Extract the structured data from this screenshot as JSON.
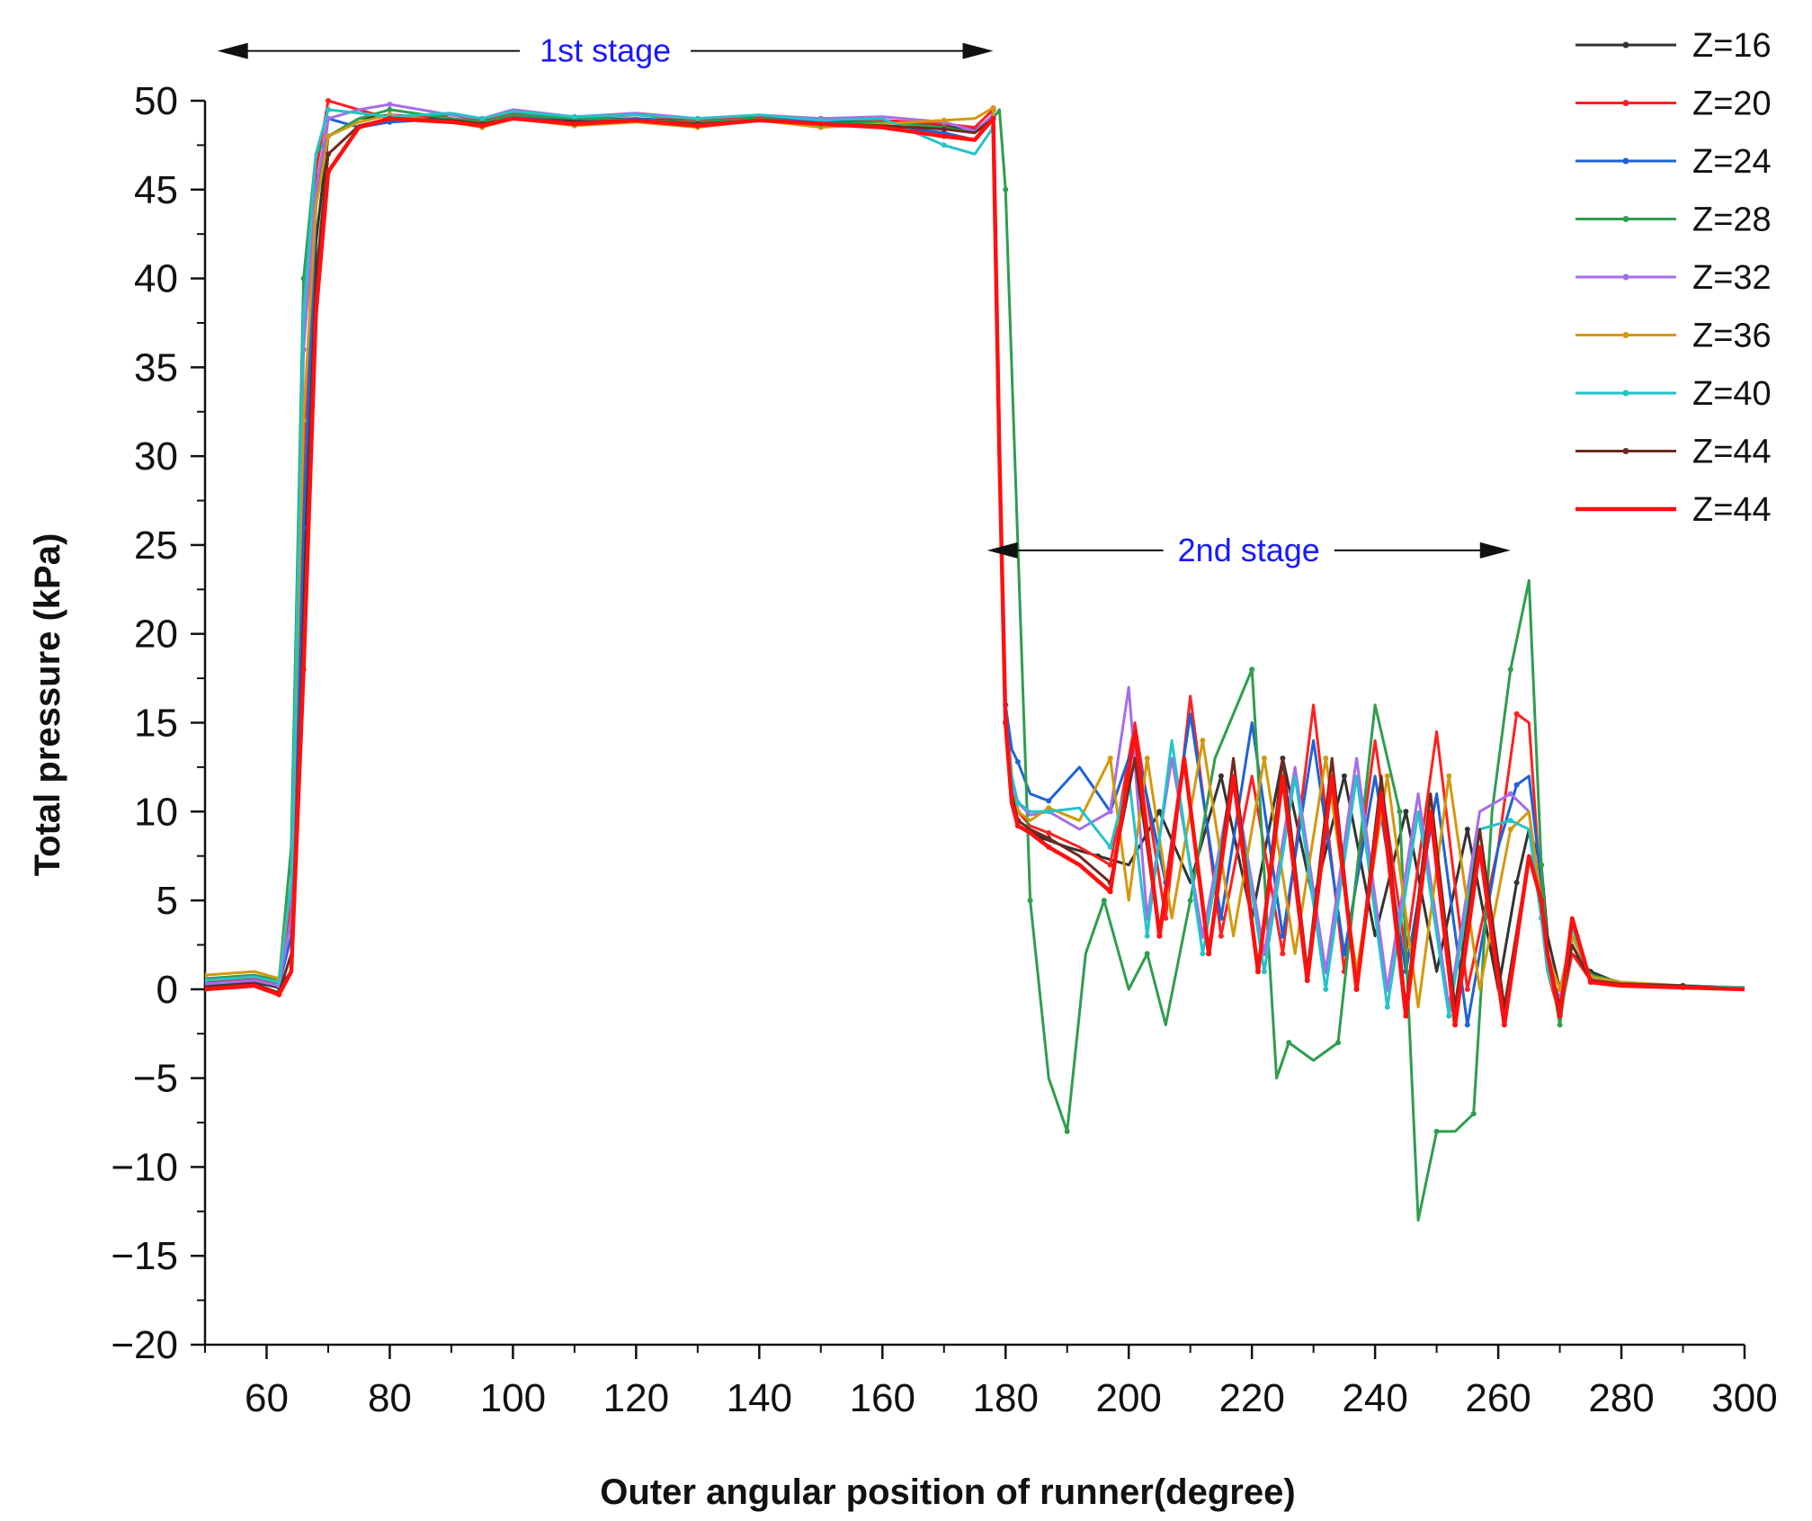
{
  "chart_data": {
    "type": "line",
    "title": "",
    "xlabel": "Outer angular position of runner(degree)",
    "ylabel": "Total pressure (kPa)",
    "xlim": [
      50,
      300
    ],
    "ylim": [
      -20,
      50
    ],
    "xticks": [
      60,
      80,
      100,
      120,
      140,
      160,
      180,
      200,
      220,
      240,
      260,
      280,
      300
    ],
    "yticks": [
      -20,
      -15,
      -10,
      -5,
      0,
      5,
      10,
      15,
      20,
      25,
      30,
      35,
      40,
      45,
      50
    ],
    "xtick_labels": [
      "60",
      "80",
      "100",
      "120",
      "140",
      "160",
      "180",
      "200",
      "220",
      "240",
      "260",
      "280",
      "300"
    ],
    "ytick_labels": [
      "−20",
      "−15",
      "−10",
      "−5",
      "0",
      "5",
      "10",
      "15",
      "20",
      "25",
      "30",
      "35",
      "40",
      "45",
      "50"
    ],
    "legend_position": "top-right",
    "annotations": [
      {
        "text": "1st stage",
        "x_from": 52,
        "x_to": 178,
        "y": 52.8,
        "color": "#1a1aff"
      },
      {
        "text": "2nd stage",
        "x_from": 177,
        "x_to": 262,
        "y": 24.7,
        "color": "#1a1aff"
      }
    ],
    "series": [
      {
        "name": "Z=16",
        "color": "#333333",
        "x": [
          50,
          58,
          62,
          64,
          66,
          68,
          70,
          75,
          80,
          90,
          95,
          100,
          110,
          120,
          130,
          140,
          150,
          160,
          170,
          175,
          178,
          179,
          180,
          181,
          182,
          184,
          186,
          190,
          195,
          200,
          205,
          210,
          215,
          220,
          225,
          230,
          235,
          240,
          245,
          250,
          255,
          260,
          263,
          265,
          267,
          268,
          270,
          272,
          275,
          280,
          290,
          300
        ],
        "y": [
          0.2,
          0.4,
          0.1,
          1,
          22,
          42,
          48,
          49,
          49.2,
          49,
          48.8,
          49,
          48.9,
          49,
          48.8,
          49,
          48.9,
          48.8,
          48.6,
          48.4,
          49,
          30,
          15,
          11,
          9.5,
          9,
          8.5,
          8,
          7.5,
          7,
          10,
          6,
          12,
          4,
          13,
          5,
          12,
          3,
          10,
          1,
          9,
          0,
          6,
          9,
          7,
          3,
          0,
          2,
          1,
          0.3,
          0.2,
          0
        ]
      },
      {
        "name": "Z=20",
        "color": "#ff2020",
        "x": [
          50,
          58,
          62,
          64,
          66,
          68,
          70,
          75,
          80,
          90,
          95,
          100,
          110,
          120,
          130,
          140,
          150,
          160,
          170,
          175,
          178,
          179,
          180,
          181,
          182,
          184,
          187,
          192,
          197,
          201,
          206,
          210,
          215,
          220,
          225,
          230,
          235,
          240,
          245,
          250,
          255,
          260,
          263,
          265,
          267,
          268,
          270,
          272,
          275,
          280,
          290,
          300
        ],
        "y": [
          0.4,
          0.6,
          0.3,
          5,
          30,
          46,
          50,
          49.5,
          49,
          49.2,
          48.9,
          49.3,
          49,
          49.2,
          48.9,
          49.1,
          49,
          48.9,
          48.7,
          48.5,
          49.5,
          30,
          16,
          12,
          10,
          9.2,
          8.8,
          8,
          7,
          15,
          4,
          16.5,
          3,
          12,
          2,
          16,
          1,
          14,
          2,
          14.5,
          0,
          8,
          15.5,
          15,
          5,
          1,
          -1.5,
          2,
          0.5,
          0.3,
          0.2,
          0
        ]
      },
      {
        "name": "Z=24",
        "color": "#1e63d6",
        "x": [
          50,
          58,
          62,
          64,
          66,
          68,
          70,
          75,
          80,
          90,
          95,
          100,
          110,
          120,
          130,
          140,
          150,
          160,
          170,
          175,
          178,
          179,
          180,
          181,
          182,
          184,
          187,
          192,
          197,
          201,
          206,
          210,
          215,
          220,
          225,
          230,
          235,
          240,
          245,
          250,
          255,
          260,
          263,
          265,
          267,
          268,
          270,
          272,
          275,
          280,
          290,
          300
        ],
        "y": [
          0.3,
          0.5,
          0.2,
          3,
          26,
          44,
          49,
          48.5,
          48.8,
          49,
          48.7,
          49.1,
          48.8,
          49,
          48.7,
          49,
          48.8,
          48.6,
          48.2,
          47.8,
          49,
          30,
          16,
          13.5,
          12.8,
          11,
          10.6,
          12.5,
          10,
          14,
          6,
          15.5,
          4,
          15,
          3,
          14,
          2,
          12,
          1,
          11,
          -2,
          8,
          11.5,
          12,
          6,
          2,
          0,
          3,
          0.8,
          0.3,
          0.2,
          0
        ]
      },
      {
        "name": "Z=28",
        "color": "#2e9e4e",
        "x": [
          50,
          58,
          62,
          64,
          66,
          68,
          70,
          75,
          80,
          90,
          95,
          100,
          110,
          120,
          130,
          140,
          150,
          160,
          170,
          175,
          178,
          179,
          180,
          182,
          184,
          187,
          190,
          193,
          196,
          200,
          203,
          206,
          210,
          214,
          220,
          224,
          226,
          230,
          234,
          240,
          244,
          247,
          250,
          253,
          256,
          259,
          262,
          265,
          267,
          268,
          270,
          272,
          275,
          280,
          290,
          300
        ],
        "y": [
          0.6,
          0.8,
          0.5,
          8,
          40,
          47,
          48,
          49,
          49.5,
          49,
          48.8,
          49.2,
          49,
          48.9,
          48.8,
          49,
          48.7,
          48.8,
          48.5,
          48.2,
          49,
          49.5,
          45,
          25,
          5,
          -5,
          -8,
          2,
          5,
          0,
          2,
          -2,
          5,
          13,
          18,
          -5,
          -3,
          -4,
          -3,
          16,
          10,
          -13,
          -8,
          -8,
          -7,
          10,
          18,
          23,
          7,
          2,
          -2,
          3,
          0.8,
          0.4,
          0.2,
          0.1
        ]
      },
      {
        "name": "Z=32",
        "color": "#a66de8",
        "x": [
          50,
          58,
          62,
          64,
          66,
          68,
          70,
          75,
          80,
          90,
          95,
          100,
          110,
          120,
          130,
          140,
          150,
          160,
          170,
          175,
          178,
          179,
          180,
          181,
          182,
          184,
          187,
          192,
          197,
          200,
          203,
          207,
          212,
          217,
          222,
          227,
          232,
          237,
          242,
          247,
          252,
          257,
          262,
          265,
          267,
          268,
          270,
          272,
          275,
          280,
          290,
          300
        ],
        "y": [
          0.3,
          0.5,
          0.2,
          4,
          36,
          45,
          49,
          49.5,
          49.8,
          49.2,
          49,
          49.5,
          49.1,
          49.3,
          49,
          49.2,
          49,
          49.1,
          48.8,
          48.3,
          49.2,
          30,
          15,
          11.5,
          10.5,
          9.8,
          10,
          9,
          10,
          17,
          4,
          13,
          3,
          12,
          2,
          12.5,
          1,
          13,
          0,
          11,
          -1,
          10,
          11,
          10,
          4,
          1,
          -0.5,
          2.5,
          0.6,
          0.3,
          0.2,
          0.1
        ]
      },
      {
        "name": "Z=36",
        "color": "#d4980e",
        "x": [
          50,
          58,
          62,
          64,
          66,
          68,
          70,
          75,
          80,
          90,
          95,
          100,
          110,
          120,
          130,
          140,
          150,
          160,
          170,
          175,
          178,
          179,
          180,
          181,
          182,
          184,
          187,
          192,
          197,
          200,
          203,
          207,
          212,
          217,
          222,
          227,
          232,
          237,
          242,
          247,
          252,
          257,
          262,
          265,
          267,
          268,
          270,
          272,
          275,
          280,
          290,
          300
        ],
        "y": [
          0.8,
          1,
          0.6,
          6,
          32,
          44,
          48,
          48.8,
          49.2,
          48.8,
          48.5,
          49,
          48.6,
          48.8,
          48.5,
          48.9,
          48.5,
          48.7,
          48.9,
          49,
          49.6,
          30,
          15,
          11,
          10,
          9.5,
          10.2,
          9.5,
          13,
          5,
          13,
          4,
          14,
          3,
          13,
          2,
          13,
          1,
          12,
          -1,
          12,
          0,
          9,
          10,
          5,
          2,
          0,
          3,
          0.7,
          0.4,
          0.2,
          0.1
        ]
      },
      {
        "name": "Z=40",
        "color": "#22c4c8",
        "x": [
          50,
          58,
          62,
          64,
          66,
          68,
          70,
          75,
          80,
          90,
          95,
          100,
          110,
          120,
          130,
          140,
          150,
          160,
          170,
          175,
          178,
          179,
          180,
          181,
          182,
          184,
          187,
          192,
          197,
          200,
          203,
          207,
          212,
          217,
          222,
          227,
          232,
          237,
          242,
          247,
          252,
          257,
          262,
          265,
          267,
          268,
          270,
          272,
          275,
          280,
          290,
          300
        ],
        "y": [
          0.5,
          0.7,
          0.4,
          6,
          38,
          47,
          49.5,
          49.3,
          49.1,
          49.3,
          49,
          49.4,
          49.1,
          49.2,
          49,
          49.2,
          48.9,
          49,
          47.5,
          47,
          48.5,
          30,
          15,
          12,
          10.5,
          10,
          10,
          10.2,
          8,
          12,
          3,
          14,
          2,
          12,
          1,
          12,
          0,
          12,
          -1,
          10,
          -1.5,
          9,
          9.5,
          9,
          4,
          1,
          -1,
          3.5,
          0.5,
          0.3,
          0.2,
          0.1
        ]
      },
      {
        "name": "Z=44",
        "color": "#6e2a1f",
        "x": [
          50,
          58,
          62,
          64,
          66,
          68,
          70,
          75,
          80,
          90,
          95,
          100,
          110,
          120,
          130,
          140,
          150,
          160,
          170,
          175,
          178,
          179,
          180,
          181,
          182,
          184,
          187,
          192,
          197,
          201,
          205,
          209,
          213,
          217,
          221,
          225,
          229,
          233,
          237,
          241,
          245,
          249,
          253,
          257,
          261,
          265,
          267,
          268,
          270,
          272,
          275,
          280,
          290,
          300
        ],
        "y": [
          0.1,
          0.3,
          -0.2,
          2,
          20,
          40,
          47,
          48.6,
          49,
          48.9,
          48.7,
          49,
          48.8,
          48.9,
          48.7,
          48.9,
          48.7,
          48.6,
          48.4,
          48.2,
          49,
          30,
          15,
          11,
          9.5,
          9,
          8.5,
          7.5,
          6,
          13,
          3,
          13,
          2,
          13,
          1,
          13,
          1,
          13,
          0,
          12,
          -1,
          11,
          -1,
          9,
          -1,
          7.5,
          5,
          2,
          -1,
          2.5,
          0.5,
          0.3,
          0.2,
          0
        ]
      },
      {
        "name": "Z=44",
        "color": "#ff1010",
        "x": [
          50,
          58,
          62,
          64,
          66,
          68,
          70,
          75,
          80,
          90,
          95,
          100,
          110,
          120,
          130,
          140,
          150,
          160,
          170,
          175,
          178,
          179,
          180,
          181,
          182,
          184,
          187,
          192,
          197,
          201,
          205,
          209,
          213,
          217,
          221,
          225,
          229,
          233,
          237,
          241,
          245,
          249,
          253,
          257,
          261,
          265,
          267,
          268,
          270,
          272,
          275,
          280,
          290,
          300
        ],
        "y": [
          0,
          0.2,
          -0.3,
          1,
          18,
          38,
          46,
          48.5,
          49,
          48.8,
          48.6,
          49,
          48.7,
          48.9,
          48.6,
          48.9,
          48.7,
          48.5,
          48,
          47.8,
          49,
          30,
          15,
          10.5,
          9.2,
          8.8,
          8,
          7,
          5.5,
          14.5,
          3,
          13,
          2,
          12,
          1,
          12,
          0.5,
          12,
          0,
          11,
          -1.5,
          10,
          -2,
          8,
          -2,
          7.5,
          5,
          2,
          -1.5,
          4,
          0.4,
          0.2,
          0.1,
          0
        ]
      }
    ]
  }
}
